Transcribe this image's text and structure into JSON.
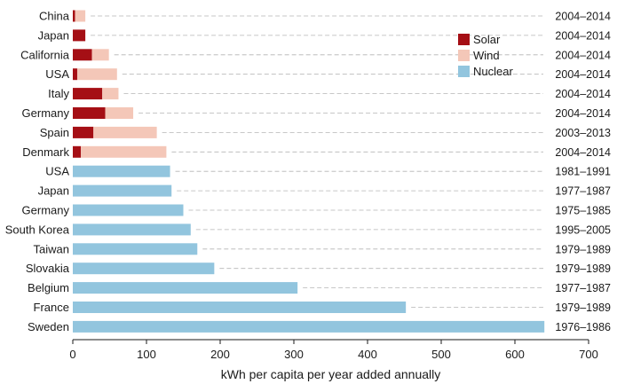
{
  "chart_data": {
    "type": "bar",
    "orientation": "horizontal",
    "stacked": true,
    "xlabel": "kWh per capita per year added annually",
    "xlim": [
      0,
      700
    ],
    "xticks": [
      0,
      100,
      200,
      300,
      400,
      500,
      600,
      700
    ],
    "legend_position": "top-right",
    "categories": [
      {
        "name": "China",
        "period": "2004–2014"
      },
      {
        "name": "Japan",
        "period": "2004–2014"
      },
      {
        "name": "California",
        "period": "2004–2014"
      },
      {
        "name": "USA",
        "period": "2004–2014"
      },
      {
        "name": "Italy",
        "period": "2004–2014"
      },
      {
        "name": "Germany",
        "period": "2004–2014"
      },
      {
        "name": "Spain",
        "period": "2003–2013"
      },
      {
        "name": "Denmark",
        "period": "2004–2014"
      },
      {
        "name": "USA",
        "period": "1981–1991"
      },
      {
        "name": "Japan",
        "period": "1977–1987"
      },
      {
        "name": "Germany",
        "period": "1975–1985"
      },
      {
        "name": "South Korea",
        "period": "1995–2005"
      },
      {
        "name": "Taiwan",
        "period": "1979–1989"
      },
      {
        "name": "Slovakia",
        "period": "1979–1989"
      },
      {
        "name": "Belgium",
        "period": "1977–1987"
      },
      {
        "name": "France",
        "period": "1979–1989"
      },
      {
        "name": "Sweden",
        "period": "1976–1986"
      }
    ],
    "series": [
      {
        "name": "Solar",
        "color": "#a50f15",
        "values": [
          3,
          17,
          26,
          6,
          40,
          44,
          28,
          11,
          0,
          0,
          0,
          0,
          0,
          0,
          0,
          0,
          0
        ]
      },
      {
        "name": "Wind",
        "color": "#f4c7b8",
        "values": [
          14,
          0,
          23,
          54,
          22,
          38,
          86,
          116,
          0,
          0,
          0,
          0,
          0,
          0,
          0,
          0,
          0
        ]
      },
      {
        "name": "Nuclear",
        "color": "#92c5de",
        "values": [
          0,
          0,
          0,
          0,
          0,
          0,
          0,
          0,
          132,
          134,
          150,
          160,
          169,
          192,
          305,
          452,
          640
        ]
      }
    ]
  }
}
